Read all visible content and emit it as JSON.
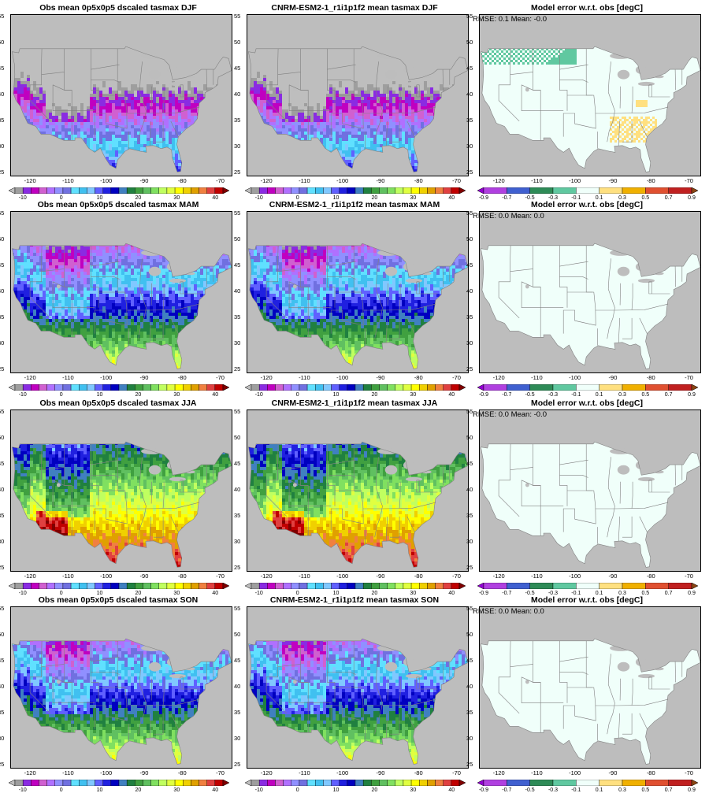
{
  "panels": [
    {
      "title": "Obs mean 0p5x0p5 dscaled tasmax DJF",
      "type": "abs",
      "season": "DJF"
    },
    {
      "title": "CNRM-ESM2-1_r1i1p1f2 mean tasmax DJF",
      "type": "abs",
      "season": "DJF"
    },
    {
      "title": "Model error w.r.t. obs [degC]",
      "type": "err",
      "stats": "RMSE: 0.1   Mean: -0.0",
      "season": "DJF"
    },
    {
      "title": "Obs mean 0p5x0p5 dscaled tasmax MAM",
      "type": "abs",
      "season": "MAM"
    },
    {
      "title": "CNRM-ESM2-1_r1i1p1f2 mean tasmax MAM",
      "type": "abs",
      "season": "MAM"
    },
    {
      "title": "Model error w.r.t. obs [degC]",
      "type": "err",
      "stats": "RMSE: 0.0   Mean: 0.0",
      "season": "MAM"
    },
    {
      "title": "Obs mean 0p5x0p5 dscaled tasmax JJA",
      "type": "abs",
      "season": "JJA"
    },
    {
      "title": "CNRM-ESM2-1_r1i1p1f2 mean tasmax JJA",
      "type": "abs",
      "season": "JJA"
    },
    {
      "title": "Model error w.r.t. obs [degC]",
      "type": "err",
      "stats": "RMSE: 0.0   Mean: -0.0",
      "season": "JJA"
    },
    {
      "title": "Obs mean 0p5x0p5 dscaled tasmax SON",
      "type": "abs",
      "season": "SON"
    },
    {
      "title": "CNRM-ESM2-1_r1i1p1f2 mean tasmax SON",
      "type": "abs",
      "season": "SON"
    },
    {
      "title": "Model error w.r.t. obs [degC]",
      "type": "err",
      "stats": "RMSE: 0.0   Mean: 0.0",
      "season": "SON"
    }
  ],
  "axes": {
    "lat_ticks": [
      "55",
      "50",
      "45",
      "40",
      "35",
      "30",
      "25"
    ],
    "lon_ticks": [
      "-120",
      "-110",
      "-100",
      "-90",
      "-80",
      "-70"
    ],
    "lat_values": [
      55,
      50,
      45,
      40,
      35,
      30,
      25
    ],
    "lon_values": [
      -120,
      -110,
      -100,
      -90,
      -80,
      -70
    ],
    "lat_range": [
      24.5,
      55.5
    ],
    "lon_range": [
      -125,
      -67
    ]
  },
  "abs_colorbar": {
    "labels": [
      "-10",
      "0",
      "10",
      "20",
      "30",
      "40"
    ],
    "label_values": [
      -10,
      0,
      10,
      20,
      30,
      40
    ],
    "colors": [
      "#bebebe",
      "#9e9e9e",
      "#8a2be2",
      "#c000c0",
      "#d060d0",
      "#b070ff",
      "#9090ff",
      "#7070e0",
      "#60e0ff",
      "#40c0f0",
      "#80c8ff",
      "#6060ff",
      "#2020e0",
      "#0000c0",
      "#4080c0",
      "#208040",
      "#40a040",
      "#60c060",
      "#80e060",
      "#c0ff60",
      "#e0ff40",
      "#ffff00",
      "#f0d000",
      "#e0a000",
      "#f08040",
      "#e04040",
      "#c00000",
      "#800000"
    ]
  },
  "err_colorbar": {
    "labels": [
      "-0.9",
      "-0.7",
      "-0.5",
      "-0.3",
      "-0.1",
      "0.1",
      "0.3",
      "0.5",
      "0.7",
      "0.9"
    ],
    "colors": [
      "#9400d3",
      "#b040e0",
      "#4060d0",
      "#2e8b57",
      "#60c8a0",
      "#f0fffa",
      "#ffe080",
      "#f0b000",
      "#e05030",
      "#c02020",
      "#8b4513"
    ]
  },
  "map_colors": {
    "land_gray": "#bdbdbd",
    "err_fill": "#f0fffa",
    "border": "#808080"
  }
}
